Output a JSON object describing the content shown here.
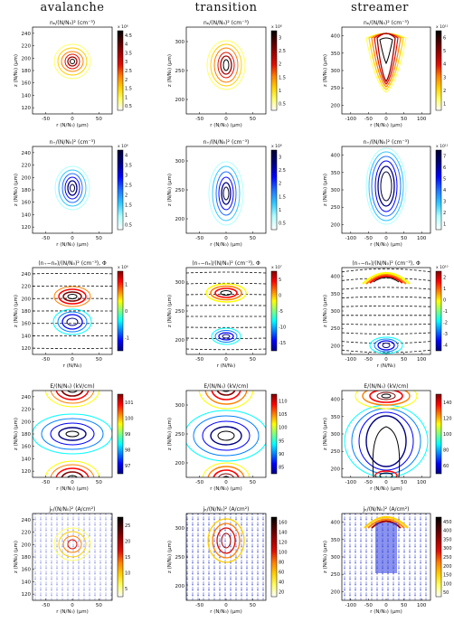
{
  "column_titles": [
    "avalanche",
    "transition",
    "streamer"
  ],
  "xlabel_rows_1_4": "r (N/N₀) (μm)",
  "xlabel_row_3": "r (N/N₀)",
  "ylabel": "z (N/N₀) (μm)",
  "row_titles": [
    "nₑ/(N/N₀)² (cm⁻³)",
    "n₊/(N/N₀)² (cm⁻³)",
    "(n₊−nₑ)/(N/N₀)² (cm⁻³), Φ",
    "E/(N/N₀) (kV/cm)",
    "jₑ/(N/N₀)² (A/cm²)"
  ],
  "colormaps": {
    "hot": [
      "#ffffff",
      "#ffff66",
      "#ffd000",
      "#ff8000",
      "#e01000",
      "#a00000",
      "#500000",
      "#000000"
    ],
    "cool": [
      "#ffffff",
      "#b0ffff",
      "#30c8ff",
      "#2070ff",
      "#0000ff",
      "#000080",
      "#000030"
    ],
    "jet": [
      "#000080",
      "#0000ff",
      "#0080ff",
      "#00ffff",
      "#80ff80",
      "#ffff00",
      "#ff8000",
      "#ff0000",
      "#800000"
    ]
  },
  "panels": [
    {
      "id": "avalanche-ne",
      "x_ticks": [
        "-50",
        "0",
        "50"
      ],
      "y_ticks": [
        "240",
        "220",
        "200",
        "180",
        "160",
        "140",
        "120"
      ],
      "cb_ticks": [
        "4.5",
        "4",
        "3.5",
        "3",
        "2.5",
        "2",
        "1.5",
        "1",
        "0.5"
      ],
      "cb_exp": "x 10⁶"
    },
    {
      "id": "transition-ne",
      "x_ticks": [
        "-50",
        "0",
        "50"
      ],
      "y_ticks": [
        "300",
        "250",
        "200"
      ],
      "cb_ticks": [
        "3",
        "2.5",
        "2",
        "1.5",
        "1",
        "0.5"
      ],
      "cb_exp": "x 10⁸"
    },
    {
      "id": "streamer-ne",
      "x_ticks": [
        "-100",
        "-50",
        "0",
        "50",
        "100"
      ],
      "y_ticks": [
        "400",
        "350",
        "300",
        "250",
        "200"
      ],
      "cb_ticks": [
        "6",
        "5",
        "4",
        "3",
        "2",
        "1"
      ],
      "cb_exp": "x 10¹¹"
    },
    {
      "id": "avalanche-np",
      "x_ticks": [
        "-50",
        "0",
        "50"
      ],
      "y_ticks": [
        "240",
        "220",
        "200",
        "180",
        "160",
        "140",
        "120"
      ],
      "cb_ticks": [
        "4",
        "3.5",
        "3",
        "2.5",
        "2",
        "1.5",
        "1",
        "0.5"
      ],
      "cb_exp": "x 10⁶"
    },
    {
      "id": "transition-np",
      "x_ticks": [
        "-50",
        "0",
        "50"
      ],
      "y_ticks": [
        "300",
        "250",
        "200"
      ],
      "cb_ticks": [
        "3",
        "2.5",
        "2",
        "1.5",
        "1",
        "0.5"
      ],
      "cb_exp": "x 10⁸"
    },
    {
      "id": "streamer-np",
      "x_ticks": [
        "-100",
        "-50",
        "0",
        "50",
        "100"
      ],
      "y_ticks": [
        "400",
        "350",
        "300",
        "250",
        "200"
      ],
      "cb_ticks": [
        "7",
        "6",
        "5",
        "4",
        "3",
        "2",
        "1"
      ],
      "cb_exp": "x 10¹¹"
    },
    {
      "id": "avalanche-rho",
      "x_ticks": [
        "-50",
        "0",
        "50"
      ],
      "y_ticks": [
        "240",
        "220",
        "200",
        "180",
        "160",
        "140",
        "120"
      ],
      "cb_ticks": [
        "1",
        "0",
        "-1"
      ],
      "cb_exp": "x 10⁶"
    },
    {
      "id": "transition-rho",
      "x_ticks": [
        "-50",
        "0",
        "50"
      ],
      "y_ticks": [
        "300",
        "250",
        "200"
      ],
      "cb_ticks": [
        "5",
        "0",
        "-5",
        "-10",
        "-15"
      ],
      "cb_exp": "x 10⁷"
    },
    {
      "id": "streamer-rho",
      "x_ticks": [
        "-100",
        "-50",
        "0",
        "50",
        "100"
      ],
      "y_ticks": [
        "400",
        "350",
        "300",
        "250",
        "200"
      ],
      "cb_ticks": [
        "2",
        "1",
        "0",
        "-1",
        "-2",
        "-3",
        "-4"
      ],
      "cb_exp": "x 10¹⁰"
    },
    {
      "id": "avalanche-E",
      "x_ticks": [
        "-50",
        "0",
        "50"
      ],
      "y_ticks": [
        "240",
        "220",
        "200",
        "180",
        "160",
        "140",
        "120"
      ],
      "cb_ticks": [
        "101",
        "100",
        "99",
        "98",
        "97"
      ],
      "cb_exp": ""
    },
    {
      "id": "transition-E",
      "x_ticks": [
        "-50",
        "0",
        "50"
      ],
      "y_ticks": [
        "300",
        "250",
        "200"
      ],
      "cb_ticks": [
        "110",
        "105",
        "100",
        "95",
        "90",
        "85"
      ],
      "cb_exp": ""
    },
    {
      "id": "streamer-E",
      "x_ticks": [
        "-100",
        "-50",
        "0",
        "50",
        "100"
      ],
      "y_ticks": [
        "400",
        "350",
        "300",
        "250",
        "200"
      ],
      "cb_ticks": [
        "140",
        "120",
        "100",
        "80",
        "60"
      ],
      "cb_exp": ""
    },
    {
      "id": "avalanche-je",
      "x_ticks": [
        "-50",
        "0",
        "50"
      ],
      "y_ticks": [
        "240",
        "220",
        "200",
        "180",
        "160",
        "140",
        "120"
      ],
      "cb_ticks": [
        "25",
        "20",
        "15",
        "10",
        "5"
      ],
      "cb_exp": ""
    },
    {
      "id": "transition-je",
      "x_ticks": [
        "-50",
        "0",
        "50"
      ],
      "y_ticks": [
        "300",
        "250",
        "200"
      ],
      "cb_ticks": [
        "160",
        "140",
        "120",
        "100",
        "80",
        "60",
        "40",
        "20"
      ],
      "cb_exp": ""
    },
    {
      "id": "streamer-je",
      "x_ticks": [
        "-100",
        "-50",
        "0",
        "50",
        "100"
      ],
      "y_ticks": [
        "400",
        "350",
        "300",
        "250",
        "200"
      ],
      "cb_ticks": [
        "450",
        "400",
        "350",
        "300",
        "250",
        "200",
        "150",
        "100",
        "50"
      ],
      "cb_exp": ""
    }
  ]
}
